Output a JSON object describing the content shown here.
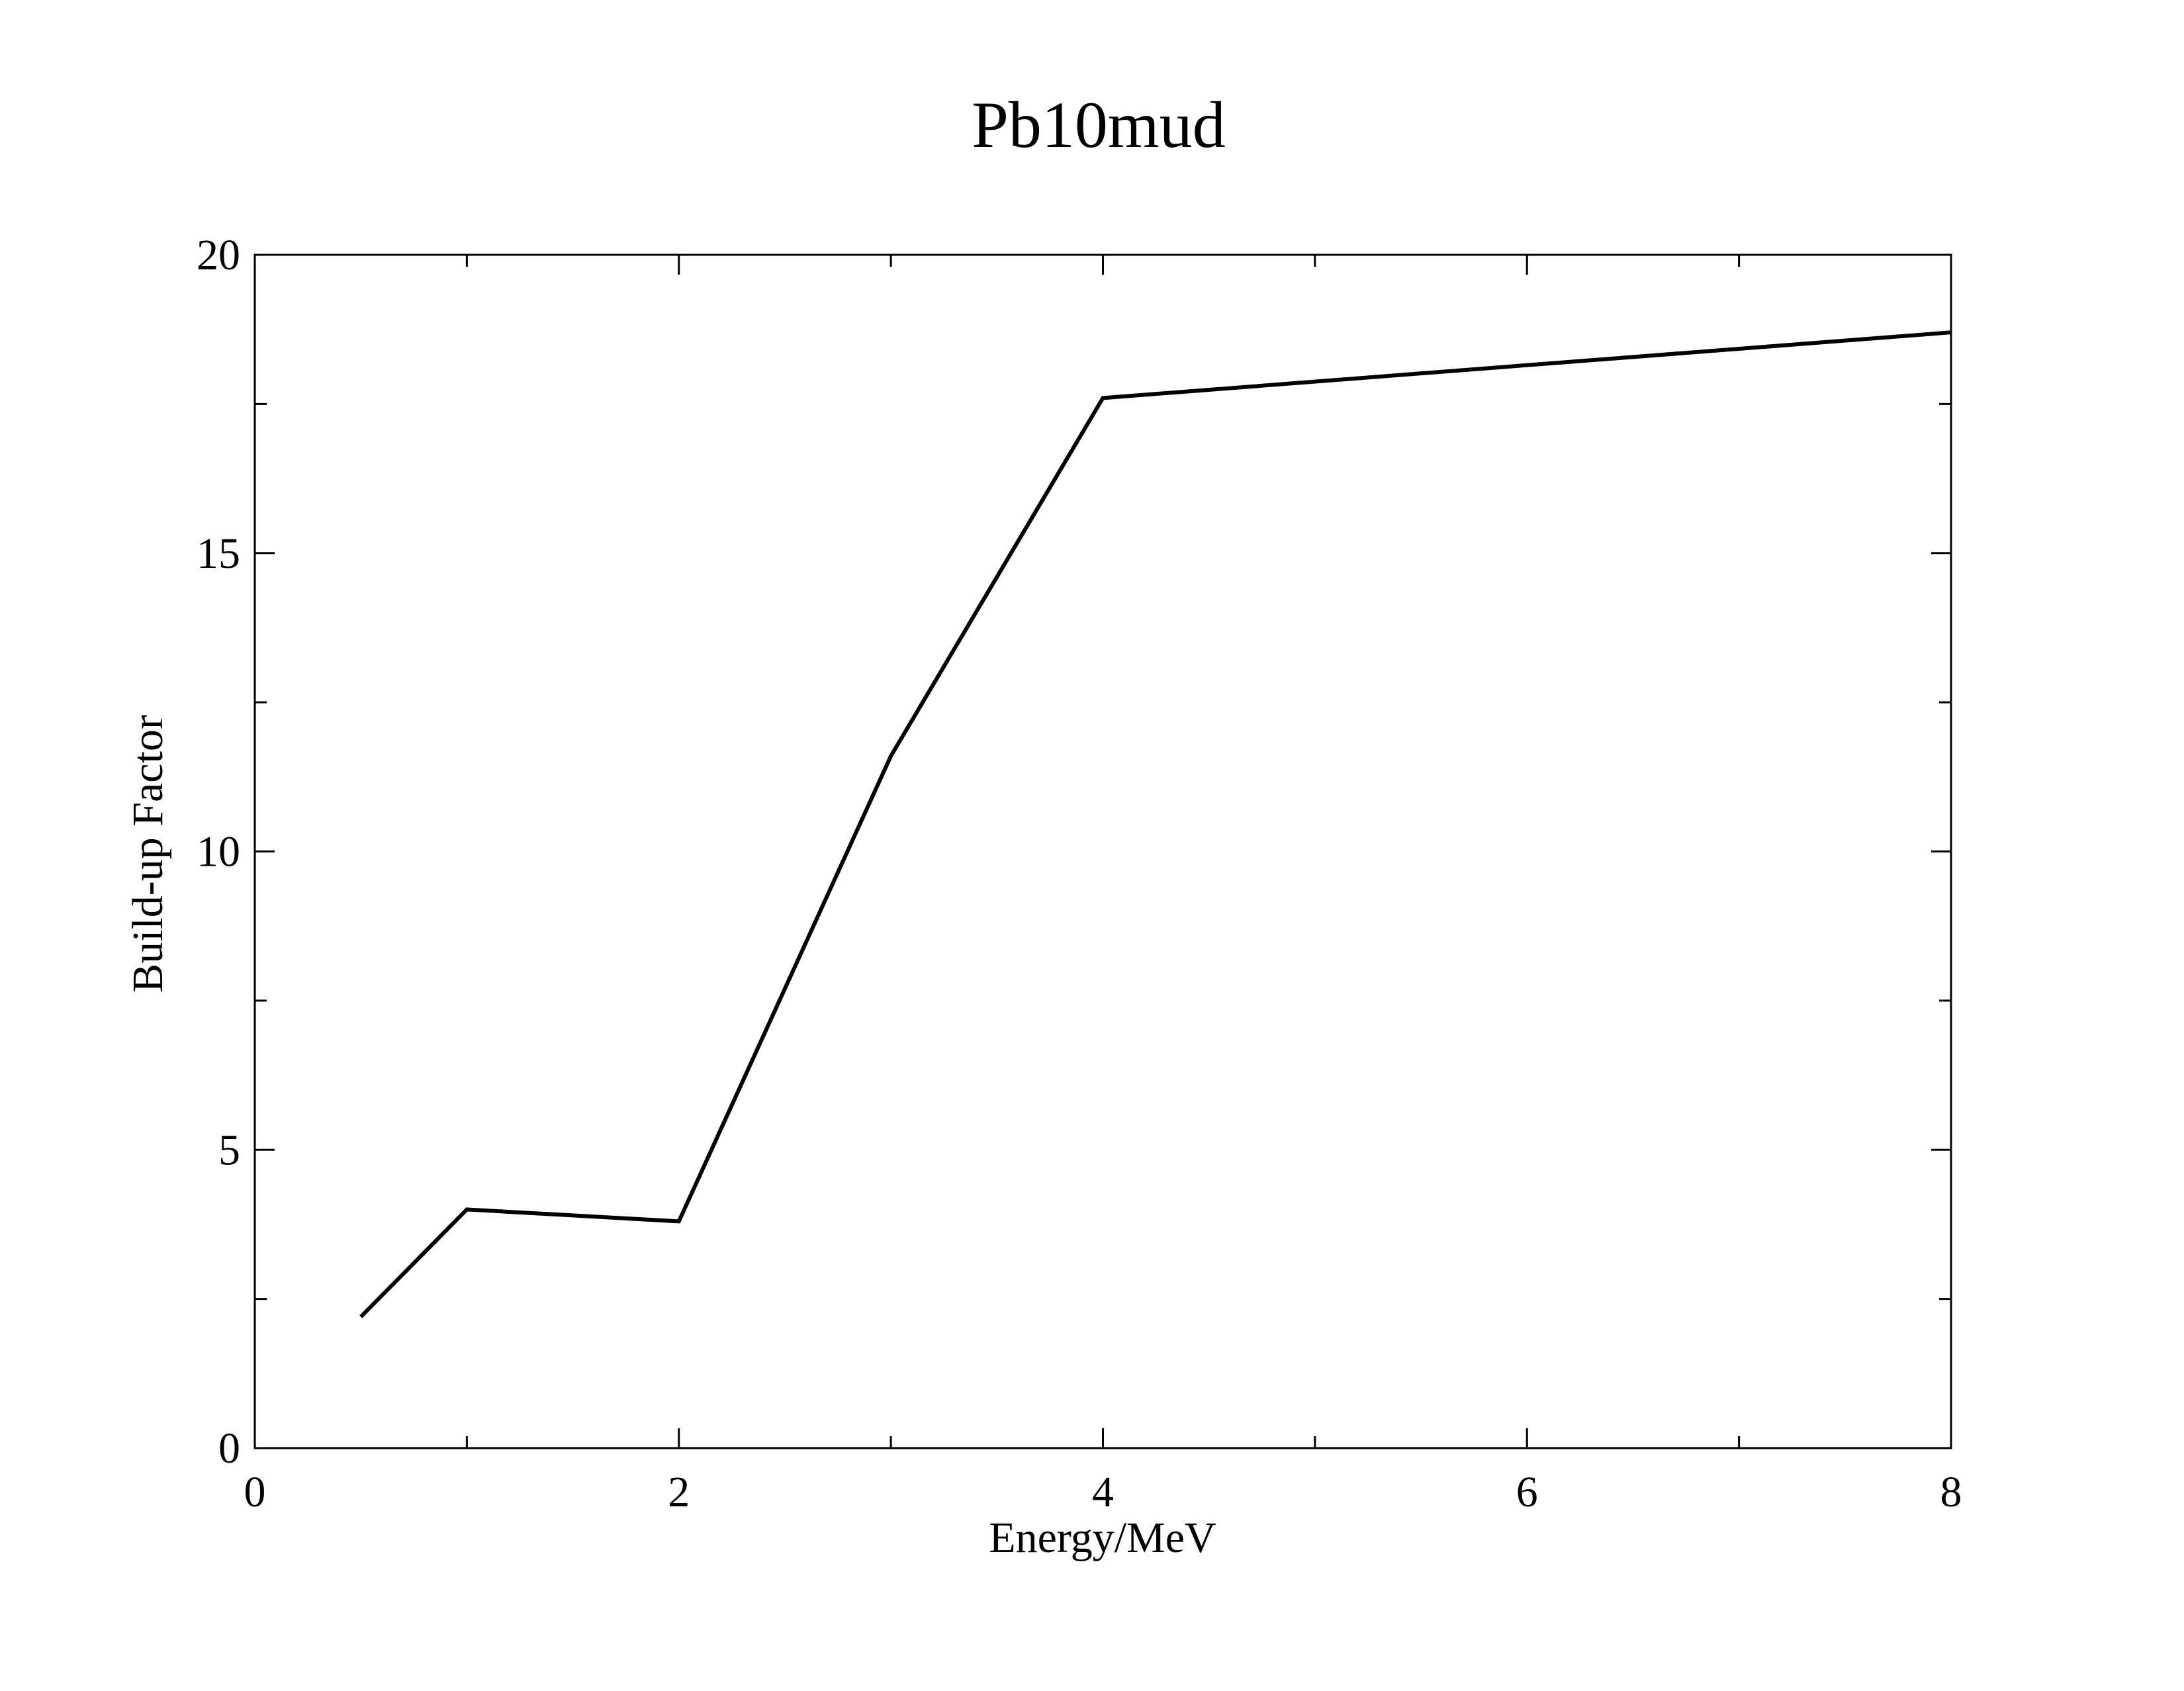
{
  "chart_data": {
    "type": "line",
    "title": "Pb10mud",
    "xlabel": "Energy/MeV",
    "ylabel": "Build-up Factor",
    "xlim": [
      0,
      8
    ],
    "ylim": [
      0,
      20
    ],
    "x_ticks": [
      0,
      2,
      4,
      6,
      8
    ],
    "x_tick_labels": [
      "0",
      "2",
      "4",
      "6",
      "8"
    ],
    "x_minor_ticks": [
      1,
      3,
      5,
      7
    ],
    "y_ticks": [
      0,
      5,
      10,
      15,
      20
    ],
    "y_tick_labels": [
      "0",
      "5",
      "10",
      "15",
      "20"
    ],
    "y_minor_ticks": [
      2.5,
      7.5,
      12.5,
      17.5
    ],
    "grid": false,
    "legend": "none",
    "line_color": "#000000",
    "series": [
      {
        "x": [
          0.5,
          1,
          2,
          3,
          4,
          8
        ],
        "y": [
          2.2,
          4.0,
          3.8,
          11.6,
          17.6,
          18.7
        ]
      }
    ]
  }
}
